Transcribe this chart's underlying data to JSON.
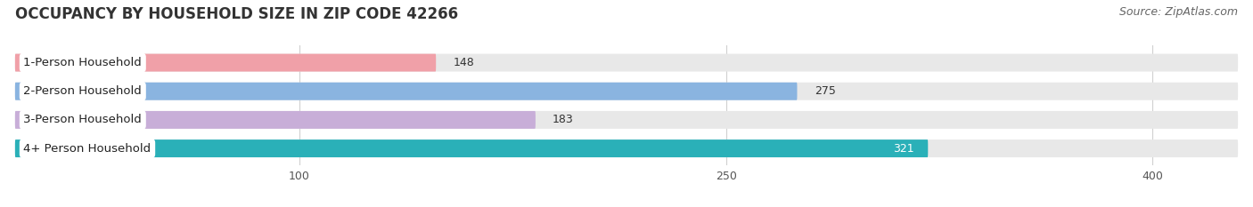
{
  "title": "OCCUPANCY BY HOUSEHOLD SIZE IN ZIP CODE 42266",
  "source": "Source: ZipAtlas.com",
  "categories": [
    "1-Person Household",
    "2-Person Household",
    "3-Person Household",
    "4+ Person Household"
  ],
  "values": [
    148,
    275,
    183,
    321
  ],
  "bar_colors": [
    "#f0a0a8",
    "#8ab4e0",
    "#c8aed8",
    "#2ab0b8"
  ],
  "value_text_colors": [
    "#333333",
    "#333333",
    "#333333",
    "#ffffff"
  ],
  "background_color": "#ffffff",
  "bar_bg_color": "#e8e8e8",
  "grid_color": "#d0d0d0",
  "xlim": [
    0,
    430
  ],
  "xmin": 0,
  "xticks": [
    100,
    250,
    400
  ],
  "title_fontsize": 12,
  "source_fontsize": 9,
  "label_fontsize": 9.5,
  "value_fontsize": 9,
  "tick_fontsize": 9
}
